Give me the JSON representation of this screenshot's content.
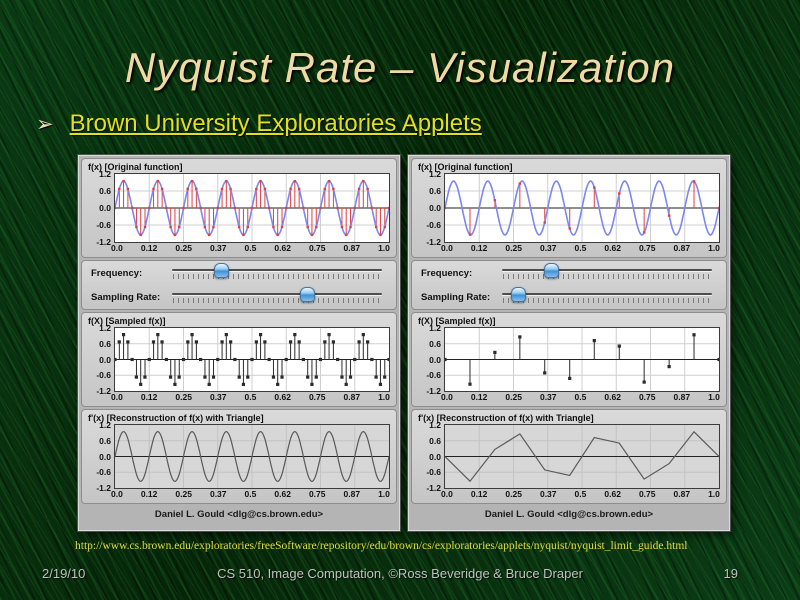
{
  "slide": {
    "title": "Nyquist Rate – Visualization",
    "bullet": {
      "marker": "➢",
      "link_text": "Brown University Exploratories Applets"
    },
    "url": "http://www.cs.brown.edu/exploratories/freeSoftware/repository/edu/brown/cs/exploratories/applets/nyquist/nyquist_limit_guide.html",
    "footer": {
      "date": "2/19/10",
      "center": "CS 510, Image Computation, ©Ross Beveridge & Bruce Draper",
      "page": "19"
    },
    "colors": {
      "title": "#f2d9a4",
      "link": "#e3df1f",
      "footer_text": "#bcc1bc",
      "background_base": "#06290c"
    }
  },
  "applet_common": {
    "labels": {
      "original": "f(x) [Original function]",
      "frequency": "Frequency:",
      "sampling_rate": "Sampling Rate:",
      "sampled": "f(X) [Sampled f(x)]",
      "reconstruction": "f'(x) [Reconstruction of f(x) with Triangle]",
      "credit": "Daniel L. Gould <dlg@cs.brown.edu>"
    },
    "x_tick_labels": [
      "0.0",
      "0.12",
      "0.25",
      "0.37",
      "0.5",
      "0.62",
      "0.75",
      "0.87",
      "1.0"
    ],
    "y_tick_labels": [
      "1.2",
      "0.6",
      "0.0",
      "-0.6",
      "-1.2"
    ],
    "colors": {
      "curve_blue": "#7c88ef",
      "stem_red": "#e04040",
      "stem_black": "#2b2b2b",
      "recon_line": "#5a5a5a",
      "zero_line": "#222222",
      "grid_on_white": "#cfcfcf",
      "grid_on_gray": "#c3c3c3",
      "plot_bg_white": "#ffffff",
      "plot_bg_gray": "#d7d7d7"
    }
  },
  "chart_data": [
    {
      "applet": "adequate-sampling",
      "signal": {
        "type": "sine",
        "formula": "y = 0.95·sin(2π·8·x)",
        "frequency": 8,
        "amplitude": 0.95,
        "x_range": [
          0,
          1
        ],
        "y_range": [
          -1.2,
          1.2
        ]
      },
      "sampling_intervals": 64,
      "sliders": {
        "frequency_position": 0.23,
        "sampling_rate_position": 0.64
      },
      "panels": {
        "original": {
          "type": "line+stem",
          "note": "blue sine with dense red sample stems"
        },
        "sampled": {
          "type": "stem",
          "note": "64 black stems, y = 0.95·sin(2π·8·k/64)"
        },
        "reconstruction": {
          "type": "line",
          "render": "smooth-sine",
          "note": "faithful smooth sine reconstruction"
        }
      }
    },
    {
      "applet": "under-sampling",
      "signal": {
        "type": "sine",
        "formula": "y = 0.95·sin(2π·8·x)",
        "frequency": 8,
        "amplitude": 0.95,
        "x_range": [
          0,
          1
        ],
        "y_range": [
          -1.2,
          1.2
        ]
      },
      "sampling_intervals": 11,
      "samples_x": [
        0,
        0.091,
        0.182,
        0.273,
        0.364,
        0.455,
        0.545,
        0.636,
        0.727,
        0.818,
        0.909,
        1.0
      ],
      "samples_y": [
        0,
        -0.94,
        0.27,
        0.86,
        -0.51,
        -0.72,
        0.72,
        0.51,
        -0.86,
        -0.27,
        0.94,
        0
      ],
      "sliders": {
        "frequency_position": 0.23,
        "sampling_rate_position": 0.07
      },
      "panels": {
        "original": {
          "type": "line+stem",
          "note": "blue sine with 12 sparse red sample stems"
        },
        "sampled": {
          "type": "stem",
          "note": "12 black stems showing undersampling"
        },
        "reconstruction": {
          "type": "line",
          "render": "linear-samples",
          "note": "piecewise-linear aliased reconstruction"
        }
      }
    }
  ]
}
